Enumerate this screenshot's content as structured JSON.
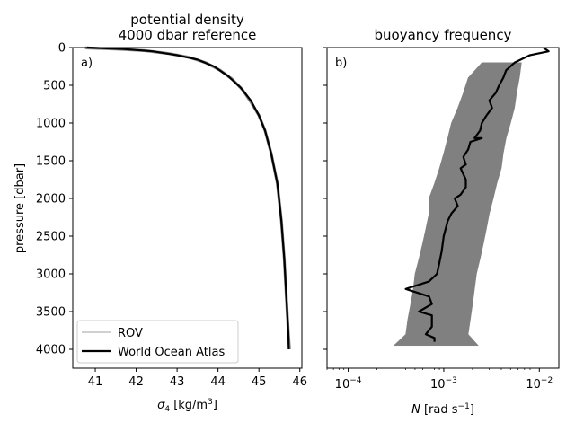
{
  "chart_data": [
    {
      "type": "line",
      "panel_label": "a)",
      "title": "potential density",
      "subtitle": "4000 dbar reference",
      "xlabel_prefix": "σ",
      "xlabel_sub": "4",
      "xlabel_unit": " [kg/m",
      "xlabel_sup": "3",
      "xlabel_close": "]",
      "ylabel": "pressure [dbar]",
      "xlim": [
        40.45,
        46.05
      ],
      "ylim": [
        4250,
        0
      ],
      "xticks": [
        41,
        42,
        43,
        44,
        45,
        46
      ],
      "xtick_labels": [
        "41",
        "42",
        "43",
        "44",
        "45",
        "46"
      ],
      "yticks": [
        0,
        500,
        1000,
        1500,
        2000,
        2500,
        3000,
        3500,
        4000
      ],
      "ytick_labels": [
        "0",
        "500",
        "1000",
        "1500",
        "2000",
        "2500",
        "3000",
        "3500",
        "4000"
      ],
      "legend_placement": "lower-left",
      "series": [
        {
          "name": "ROV",
          "color": "#808080",
          "points": [
            [
              40.75,
              5
            ],
            [
              41.5,
              20
            ],
            [
              42.2,
              40
            ],
            [
              42.8,
              80
            ],
            [
              43.3,
              130
            ],
            [
              43.7,
              200
            ],
            [
              44.05,
              300
            ],
            [
              44.35,
              420
            ],
            [
              44.6,
              560
            ],
            [
              44.8,
              720
            ],
            [
              45.0,
              900
            ],
            [
              45.15,
              1100
            ],
            [
              45.3,
              1400
            ],
            [
              45.45,
              1800
            ],
            [
              45.55,
              2300
            ],
            [
              45.62,
              2800
            ],
            [
              45.67,
              3300
            ],
            [
              45.72,
              3800
            ],
            [
              45.75,
              4000
            ]
          ]
        },
        {
          "name": "World Ocean Atlas",
          "color": "#000000",
          "points": [
            [
              40.8,
              0
            ],
            [
              41.7,
              20
            ],
            [
              42.4,
              50
            ],
            [
              43.0,
              100
            ],
            [
              43.5,
              160
            ],
            [
              43.9,
              250
            ],
            [
              44.25,
              380
            ],
            [
              44.55,
              530
            ],
            [
              44.8,
              700
            ],
            [
              45.0,
              900
            ],
            [
              45.15,
              1100
            ],
            [
              45.3,
              1400
            ],
            [
              45.45,
              1800
            ],
            [
              45.55,
              2300
            ],
            [
              45.62,
              2800
            ],
            [
              45.67,
              3300
            ],
            [
              45.72,
              3800
            ],
            [
              45.73,
              4000
            ]
          ]
        }
      ]
    },
    {
      "type": "line",
      "panel_label": "b)",
      "title": "buoyancy frequency",
      "xlabel_prefix": "N",
      "xlabel_unit": " [rad s",
      "xlabel_sup": "−1",
      "xlabel_close": "]",
      "x_scale": "log",
      "xlim": [
        6e-05,
        0.016
      ],
      "ylim": [
        4250,
        0
      ],
      "xticks": [
        0.0001,
        0.001,
        0.01
      ],
      "xtick_labels": [
        {
          "base": "10",
          "exp": "−4"
        },
        {
          "base": "10",
          "exp": "−3"
        },
        {
          "base": "10",
          "exp": "−2"
        }
      ],
      "yticks": [
        0,
        500,
        1000,
        1500,
        2000,
        2500,
        3000,
        3500,
        4000
      ],
      "series": [
        {
          "name": "ROV",
          "color": "#808080",
          "band": [
            [
              200,
              0.0025,
              0.0065
            ],
            [
              400,
              0.0018,
              0.0062
            ],
            [
              600,
              0.0016,
              0.0058
            ],
            [
              800,
              0.0014,
              0.0055
            ],
            [
              1000,
              0.0012,
              0.005
            ],
            [
              1200,
              0.0011,
              0.0045
            ],
            [
              1400,
              0.001,
              0.0042
            ],
            [
              1600,
              0.0009,
              0.004
            ],
            [
              1800,
              0.0008,
              0.0036
            ],
            [
              2000,
              0.0007,
              0.0033
            ],
            [
              2200,
              0.0007,
              0.003
            ],
            [
              2400,
              0.00065,
              0.0028
            ],
            [
              2600,
              0.0006,
              0.0026
            ],
            [
              2800,
              0.00055,
              0.0024
            ],
            [
              3000,
              0.0005,
              0.0022
            ],
            [
              3200,
              0.00048,
              0.0021
            ],
            [
              3400,
              0.00045,
              0.002
            ],
            [
              3600,
              0.00042,
              0.0019
            ],
            [
              3800,
              0.0004,
              0.0018
            ],
            [
              3950,
              0.0003,
              0.0023
            ]
          ]
        },
        {
          "name": "World Ocean Atlas",
          "color": "#000000",
          "points": [
            [
              0.011,
              0
            ],
            [
              0.0125,
              50
            ],
            [
              0.008,
              100
            ],
            [
              0.0055,
              200
            ],
            [
              0.0045,
              300
            ],
            [
              0.0042,
              400
            ],
            [
              0.0038,
              500
            ],
            [
              0.0035,
              600
            ],
            [
              0.003,
              700
            ],
            [
              0.0032,
              800
            ],
            [
              0.0028,
              900
            ],
            [
              0.0025,
              1000
            ],
            [
              0.0024,
              1100
            ],
            [
              0.0021,
              1200
            ],
            [
              0.0025,
              1200
            ],
            [
              0.0019,
              1250
            ],
            [
              0.0018,
              1350
            ],
            [
              0.0016,
              1450
            ],
            [
              0.0017,
              1550
            ],
            [
              0.0015,
              1600
            ],
            [
              0.0017,
              1750
            ],
            [
              0.0017,
              1850
            ],
            [
              0.0015,
              1950
            ],
            [
              0.0013,
              2000
            ],
            [
              0.0014,
              2100
            ],
            [
              0.0012,
              2200
            ],
            [
              0.0011,
              2300
            ],
            [
              0.001,
              2500
            ],
            [
              0.00095,
              2700
            ],
            [
              0.0009,
              2850
            ],
            [
              0.00085,
              3000
            ],
            [
              0.0007,
              3100
            ],
            [
              0.0004,
              3200
            ],
            [
              0.0007,
              3300
            ],
            [
              0.00075,
              3400
            ],
            [
              0.00055,
              3500
            ],
            [
              0.00075,
              3550
            ],
            [
              0.00075,
              3700
            ],
            [
              0.00065,
              3800
            ],
            [
              0.0008,
              3850
            ],
            [
              0.0008,
              3900
            ]
          ]
        }
      ]
    }
  ]
}
